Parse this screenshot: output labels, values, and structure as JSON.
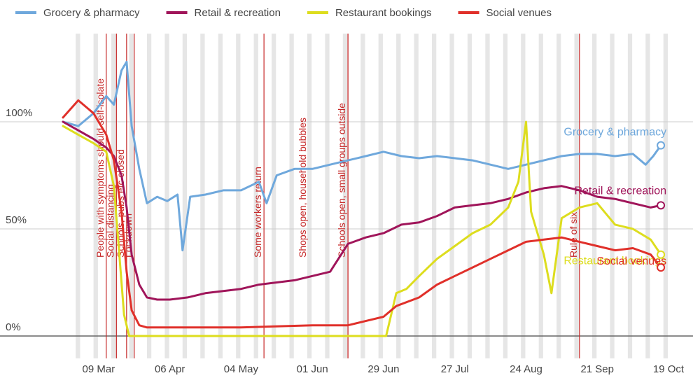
{
  "chart_data": {
    "type": "line",
    "title": "",
    "xlabel": "",
    "ylabel": "",
    "x_start": "2020-02-24",
    "x_end": "2020-10-19",
    "ylim": [
      -5,
      105
    ],
    "x_ticks": [
      "09 Mar",
      "06 Apr",
      "04 May",
      "01 Jun",
      "29 Jun",
      "27 Jul",
      "24 Aug",
      "21 Sep",
      "19 Oct"
    ],
    "x_tick_dates": [
      "2020-03-09",
      "2020-04-06",
      "2020-05-04",
      "2020-06-01",
      "2020-06-29",
      "2020-07-27",
      "2020-08-24",
      "2020-09-21",
      "2020-10-19"
    ],
    "y_ticks": [
      {
        "value": 0,
        "label": "0%"
      },
      {
        "value": 50,
        "label": "50%"
      },
      {
        "value": 100,
        "label": "100%"
      }
    ],
    "grid": true,
    "weekend_shading": true,
    "legend_position": "top",
    "events": [
      {
        "date": "2020-03-12",
        "label": "People with symptoms should self-isolate"
      },
      {
        "date": "2020-03-16",
        "label": "Social distancing"
      },
      {
        "date": "2020-03-20",
        "label": "Schools, pubs etc closed"
      },
      {
        "date": "2020-03-23",
        "label": "Lockdown"
      },
      {
        "date": "2020-05-13",
        "label": "Some workers return"
      },
      {
        "date": "2020-06-15",
        "label": "Schools open, small groups outside"
      },
      {
        "date": "2020-06-15",
        "label": "Shops open, household bubbles"
      },
      {
        "date": "2020-09-14",
        "label": "Rule of six"
      }
    ],
    "series": [
      {
        "name": "Grocery & pharmacy",
        "end_label": "Grocery & pharmacy",
        "color": "#6fa8dc",
        "points": [
          [
            "2020-02-24",
            100
          ],
          [
            "2020-03-01",
            98
          ],
          [
            "2020-03-07",
            104
          ],
          [
            "2020-03-12",
            112
          ],
          [
            "2020-03-15",
            108
          ],
          [
            "2020-03-18",
            124
          ],
          [
            "2020-03-20",
            128
          ],
          [
            "2020-03-22",
            98
          ],
          [
            "2020-03-25",
            78
          ],
          [
            "2020-03-28",
            62
          ],
          [
            "2020-04-01",
            65
          ],
          [
            "2020-04-05",
            63
          ],
          [
            "2020-04-09",
            66
          ],
          [
            "2020-04-11",
            40
          ],
          [
            "2020-04-14",
            65
          ],
          [
            "2020-04-20",
            66
          ],
          [
            "2020-04-27",
            68
          ],
          [
            "2020-05-04",
            68
          ],
          [
            "2020-05-11",
            72
          ],
          [
            "2020-05-14",
            62
          ],
          [
            "2020-05-18",
            75
          ],
          [
            "2020-05-25",
            78
          ],
          [
            "2020-06-01",
            78
          ],
          [
            "2020-06-08",
            80
          ],
          [
            "2020-06-15",
            82
          ],
          [
            "2020-06-22",
            84
          ],
          [
            "2020-06-29",
            86
          ],
          [
            "2020-07-06",
            84
          ],
          [
            "2020-07-13",
            83
          ],
          [
            "2020-07-20",
            84
          ],
          [
            "2020-07-27",
            83
          ],
          [
            "2020-08-03",
            82
          ],
          [
            "2020-08-10",
            80
          ],
          [
            "2020-08-17",
            78
          ],
          [
            "2020-08-24",
            80
          ],
          [
            "2020-08-31",
            82
          ],
          [
            "2020-09-07",
            84
          ],
          [
            "2020-09-14",
            85
          ],
          [
            "2020-09-21",
            85
          ],
          [
            "2020-09-28",
            84
          ],
          [
            "2020-10-05",
            85
          ],
          [
            "2020-10-10",
            80
          ],
          [
            "2020-10-13",
            84
          ],
          [
            "2020-10-16",
            89
          ]
        ]
      },
      {
        "name": "Retail & recreation",
        "end_label": "Retail & recreation",
        "color": "#a0155a",
        "points": [
          [
            "2020-02-24",
            100
          ],
          [
            "2020-03-01",
            96
          ],
          [
            "2020-03-07",
            92
          ],
          [
            "2020-03-12",
            88
          ],
          [
            "2020-03-15",
            84
          ],
          [
            "2020-03-18",
            75
          ],
          [
            "2020-03-20",
            60
          ],
          [
            "2020-03-22",
            38
          ],
          [
            "2020-03-25",
            24
          ],
          [
            "2020-03-28",
            18
          ],
          [
            "2020-04-01",
            17
          ],
          [
            "2020-04-06",
            17
          ],
          [
            "2020-04-13",
            18
          ],
          [
            "2020-04-20",
            20
          ],
          [
            "2020-04-27",
            21
          ],
          [
            "2020-05-04",
            22
          ],
          [
            "2020-05-11",
            24
          ],
          [
            "2020-05-18",
            25
          ],
          [
            "2020-05-25",
            26
          ],
          [
            "2020-06-01",
            28
          ],
          [
            "2020-06-08",
            30
          ],
          [
            "2020-06-15",
            43
          ],
          [
            "2020-06-22",
            46
          ],
          [
            "2020-06-29",
            48
          ],
          [
            "2020-07-06",
            52
          ],
          [
            "2020-07-13",
            53
          ],
          [
            "2020-07-20",
            56
          ],
          [
            "2020-07-27",
            60
          ],
          [
            "2020-08-03",
            61
          ],
          [
            "2020-08-10",
            62
          ],
          [
            "2020-08-17",
            64
          ],
          [
            "2020-08-24",
            67
          ],
          [
            "2020-08-31",
            69
          ],
          [
            "2020-09-07",
            70
          ],
          [
            "2020-09-14",
            68
          ],
          [
            "2020-09-21",
            65
          ],
          [
            "2020-09-28",
            64
          ],
          [
            "2020-10-05",
            62
          ],
          [
            "2020-10-12",
            60
          ],
          [
            "2020-10-16",
            61
          ]
        ]
      },
      {
        "name": "Restaurant bookings",
        "end_label": "Restaurant bookings",
        "color": "#dddd1e",
        "points": [
          [
            "2020-02-24",
            98
          ],
          [
            "2020-03-01",
            94
          ],
          [
            "2020-03-07",
            90
          ],
          [
            "2020-03-12",
            86
          ],
          [
            "2020-03-15",
            70
          ],
          [
            "2020-03-17",
            40
          ],
          [
            "2020-03-19",
            10
          ],
          [
            "2020-03-21",
            0
          ],
          [
            "2020-04-01",
            0
          ],
          [
            "2020-05-01",
            0
          ],
          [
            "2020-06-01",
            0
          ],
          [
            "2020-06-30",
            0
          ],
          [
            "2020-07-04",
            20
          ],
          [
            "2020-07-08",
            22
          ],
          [
            "2020-07-13",
            28
          ],
          [
            "2020-07-20",
            36
          ],
          [
            "2020-07-27",
            42
          ],
          [
            "2020-08-03",
            48
          ],
          [
            "2020-08-10",
            52
          ],
          [
            "2020-08-17",
            60
          ],
          [
            "2020-08-21",
            72
          ],
          [
            "2020-08-24",
            100
          ],
          [
            "2020-08-26",
            58
          ],
          [
            "2020-08-31",
            38
          ],
          [
            "2020-09-03",
            20
          ],
          [
            "2020-09-07",
            55
          ],
          [
            "2020-09-14",
            60
          ],
          [
            "2020-09-21",
            62
          ],
          [
            "2020-09-28",
            52
          ],
          [
            "2020-10-05",
            50
          ],
          [
            "2020-10-12",
            45
          ],
          [
            "2020-10-16",
            38
          ]
        ]
      },
      {
        "name": "Social venues",
        "end_label": "Social venues",
        "color": "#e0302a",
        "points": [
          [
            "2020-02-24",
            102
          ],
          [
            "2020-03-01",
            110
          ],
          [
            "2020-03-07",
            104
          ],
          [
            "2020-03-12",
            94
          ],
          [
            "2020-03-15",
            82
          ],
          [
            "2020-03-18",
            58
          ],
          [
            "2020-03-20",
            30
          ],
          [
            "2020-03-22",
            12
          ],
          [
            "2020-03-25",
            5
          ],
          [
            "2020-03-28",
            4
          ],
          [
            "2020-04-06",
            4
          ],
          [
            "2020-05-04",
            4
          ],
          [
            "2020-06-01",
            5
          ],
          [
            "2020-06-15",
            5
          ],
          [
            "2020-06-22",
            7
          ],
          [
            "2020-06-29",
            9
          ],
          [
            "2020-07-04",
            14
          ],
          [
            "2020-07-13",
            18
          ],
          [
            "2020-07-20",
            24
          ],
          [
            "2020-07-27",
            28
          ],
          [
            "2020-08-03",
            32
          ],
          [
            "2020-08-10",
            36
          ],
          [
            "2020-08-17",
            40
          ],
          [
            "2020-08-24",
            44
          ],
          [
            "2020-08-31",
            45
          ],
          [
            "2020-09-07",
            46
          ],
          [
            "2020-09-14",
            44
          ],
          [
            "2020-09-21",
            42
          ],
          [
            "2020-09-28",
            40
          ],
          [
            "2020-10-05",
            41
          ],
          [
            "2020-10-12",
            38
          ],
          [
            "2020-10-16",
            32
          ]
        ]
      }
    ]
  }
}
